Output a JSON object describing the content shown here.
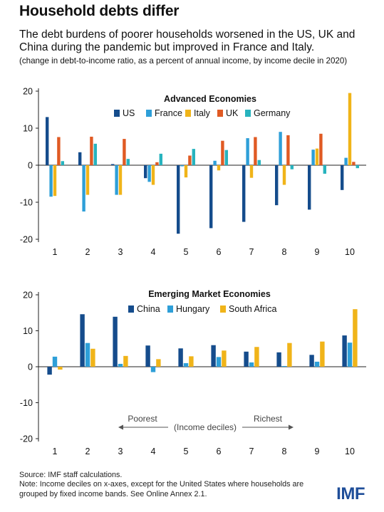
{
  "header": {
    "title": "Household debts differ",
    "subtitle": "The debt burdens of poorer households worsened in the US, UK and China during the pandemic but improved in France and Italy.",
    "note": "(change in debt-to-income ratio, as a percent of annual income, by income decile in 2020)"
  },
  "footer": {
    "source": "Source: IMF staff calculations.",
    "note": "Note: Income deciles on x-axes, except for the United States where households are grouped by fixed income bands. See Online Annex 2.1.",
    "logo": "IMF"
  },
  "chart_data": [
    {
      "type": "bar",
      "title": "Advanced Economies",
      "categories": [
        "1",
        "2",
        "3",
        "4",
        "5",
        "6",
        "7",
        "8",
        "9",
        "10"
      ],
      "ylim": [
        -20,
        20
      ],
      "yticks": [
        20,
        10,
        0,
        -10,
        -20
      ],
      "grid": false,
      "legend": "top",
      "series": [
        {
          "name": "US",
          "color": "#154c8c",
          "values": [
            13,
            3.5,
            0.3,
            -3.5,
            -18.5,
            -17,
            -15.3,
            -10.8,
            -12,
            -6.7
          ]
        },
        {
          "name": "France",
          "color": "#2e9fd8",
          "values": [
            -8.5,
            -12.5,
            -8,
            -4.5,
            -0.3,
            1.2,
            7.3,
            9,
            4.2,
            2
          ]
        },
        {
          "name": "Italy",
          "color": "#f0b419",
          "values": [
            -8.3,
            -8,
            -8,
            -5.3,
            -3.3,
            -1.4,
            -3.4,
            -5.3,
            4.5,
            19.5
          ]
        },
        {
          "name": "UK",
          "color": "#e05a23",
          "values": [
            7.6,
            7.7,
            7.1,
            0.8,
            2.6,
            6.6,
            7.6,
            8.1,
            8.5,
            0.9
          ]
        },
        {
          "name": "Germany",
          "color": "#27b3be",
          "values": [
            1.1,
            5.8,
            1.7,
            3.1,
            4.4,
            4.1,
            1.4,
            -1.1,
            -2.3,
            -0.8
          ]
        }
      ]
    },
    {
      "type": "bar",
      "title": "Emerging Market Economies",
      "categories": [
        "1",
        "2",
        "3",
        "4",
        "5",
        "6",
        "7",
        "8",
        "9",
        "10"
      ],
      "ylim": [
        -20,
        20
      ],
      "yticks": [
        20,
        10,
        0,
        -10,
        -20
      ],
      "grid": false,
      "legend": "top",
      "series": [
        {
          "name": "China",
          "color": "#154c8c",
          "values": [
            -2.2,
            14.6,
            13.9,
            5.9,
            5.1,
            6,
            4.2,
            4,
            3.3,
            8.7
          ]
        },
        {
          "name": "Hungary",
          "color": "#2e9fd8",
          "values": [
            2.8,
            6.6,
            0.8,
            -1.5,
            1,
            2.7,
            1.2,
            0.2,
            1.4,
            6.7
          ]
        },
        {
          "name": "South Africa",
          "color": "#f0b419",
          "values": [
            -0.8,
            5,
            3,
            2.1,
            2.9,
            4.5,
            5.5,
            6.6,
            7,
            16
          ]
        }
      ],
      "annotations": {
        "poorest": "Poorest",
        "richest": "Richest",
        "axis_note": "(Income deciles)"
      }
    }
  ]
}
